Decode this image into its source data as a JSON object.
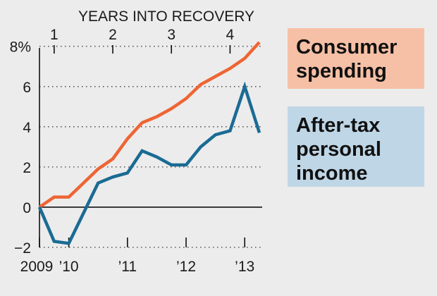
{
  "chart_data": {
    "type": "line",
    "top_axis_title": "YEARS INTO RECOVERY",
    "top_ticks": [
      {
        "x": 1,
        "label": "1"
      },
      {
        "x": 5,
        "label": "2"
      },
      {
        "x": 9,
        "label": "3"
      },
      {
        "x": 13,
        "label": "4"
      }
    ],
    "x_ticks": [
      {
        "x": 0,
        "label": "2009"
      },
      {
        "x": 2,
        "label": "’10"
      },
      {
        "x": 6,
        "label": "’11"
      },
      {
        "x": 10,
        "label": "’12"
      },
      {
        "x": 14,
        "label": "’13"
      }
    ],
    "y_ticks": [
      {
        "v": -2,
        "label": "−2"
      },
      {
        "v": 0,
        "label": "0"
      },
      {
        "v": 2,
        "label": "2"
      },
      {
        "v": 4,
        "label": "4"
      },
      {
        "v": 6,
        "label": "6"
      },
      {
        "v": 8,
        "label": "8%"
      }
    ],
    "xlim": [
      0,
      15
    ],
    "ylim": [
      -2,
      8.2
    ],
    "grid": true,
    "legend_placement": "right",
    "series": [
      {
        "name": "Consumer spending",
        "legend_lines": [
          "Consumer",
          "spending"
        ],
        "color": "#ee6534",
        "legend_bg": "#f6c0a6",
        "x": [
          0,
          1,
          2,
          3,
          4,
          5,
          6,
          7,
          8,
          9,
          10,
          11,
          12,
          13,
          14
        ],
        "values": [
          0,
          0.5,
          0.5,
          1.2,
          1.9,
          2.4,
          3.4,
          4.2,
          4.5,
          4.9,
          5.4,
          6.1,
          6.5,
          6.9,
          7.4
        ]
      },
      {
        "name": "After-tax personal income",
        "legend_lines": [
          "After-tax",
          "personal",
          "income"
        ],
        "color": "#1a6b94",
        "legend_bg": "#bfd6e6",
        "x": [
          0,
          1,
          2,
          3,
          4,
          5,
          6,
          7,
          8,
          9,
          10,
          11,
          12,
          13,
          14
        ],
        "values": [
          0,
          -1.7,
          -1.8,
          -0.3,
          1.2,
          1.5,
          1.7,
          2.8,
          2.5,
          2.1,
          2.1,
          3.0,
          3.6,
          3.8,
          6.0
        ]
      }
    ],
    "series_tail": [
      {
        "x": 15,
        "consumer": 8.2,
        "income": 3.7
      }
    ]
  }
}
